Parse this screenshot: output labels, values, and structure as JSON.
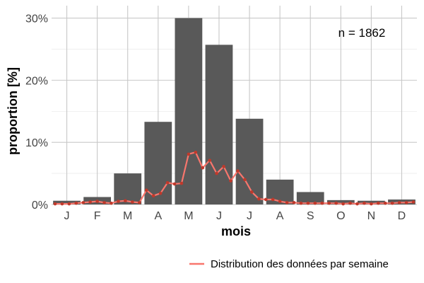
{
  "chart_data": {
    "type": "bar",
    "categories": [
      "J",
      "F",
      "M",
      "A",
      "M",
      "J",
      "J",
      "A",
      "S",
      "O",
      "N",
      "D"
    ],
    "values": [
      0.6,
      1.2,
      5.0,
      13.3,
      30.0,
      25.7,
      13.8,
      4.0,
      2.0,
      0.7,
      0.6,
      0.8
    ],
    "ylabel": "proportion [%]",
    "xlabel": "mois",
    "ylim": [
      0,
      32
    ],
    "yticks": [
      "0%",
      "10%",
      "20%",
      "30%"
    ],
    "annotation": "n = 1862",
    "bar_color": "#595959",
    "grid": true,
    "legend_position": "bottom-right",
    "line_series": {
      "name": "Distribution des données par semaine",
      "color": "#F8766D",
      "x": [
        1,
        2,
        3,
        4,
        5,
        6,
        7,
        8,
        9,
        10,
        11,
        12,
        13,
        14,
        15,
        16,
        17,
        18,
        19,
        20,
        21,
        22,
        23,
        24,
        25,
        26,
        27,
        28,
        29,
        30,
        31,
        32,
        33,
        34,
        35,
        36,
        37,
        38,
        39,
        40,
        41,
        42,
        43,
        44,
        45,
        46,
        47,
        48,
        49,
        50,
        51,
        52
      ],
      "values": [
        0.1,
        0.1,
        0.1,
        0.2,
        0.3,
        0.4,
        0.5,
        0.3,
        0.2,
        0.5,
        0.6,
        0.4,
        0.3,
        2.3,
        1.4,
        1.8,
        3.5,
        3.3,
        3.4,
        8.1,
        8.4,
        5.9,
        7.1,
        5.0,
        6.1,
        3.8,
        5.4,
        4.0,
        2.0,
        0.9,
        0.8,
        0.8,
        0.5,
        0.3,
        0.3,
        0.2,
        0.2,
        0.2,
        0.2,
        0.2,
        0.2,
        0.1,
        0.2,
        0.1,
        0.2,
        0.1,
        0.2,
        0.2,
        0.2,
        0.3,
        0.3,
        0.4
      ]
    }
  }
}
